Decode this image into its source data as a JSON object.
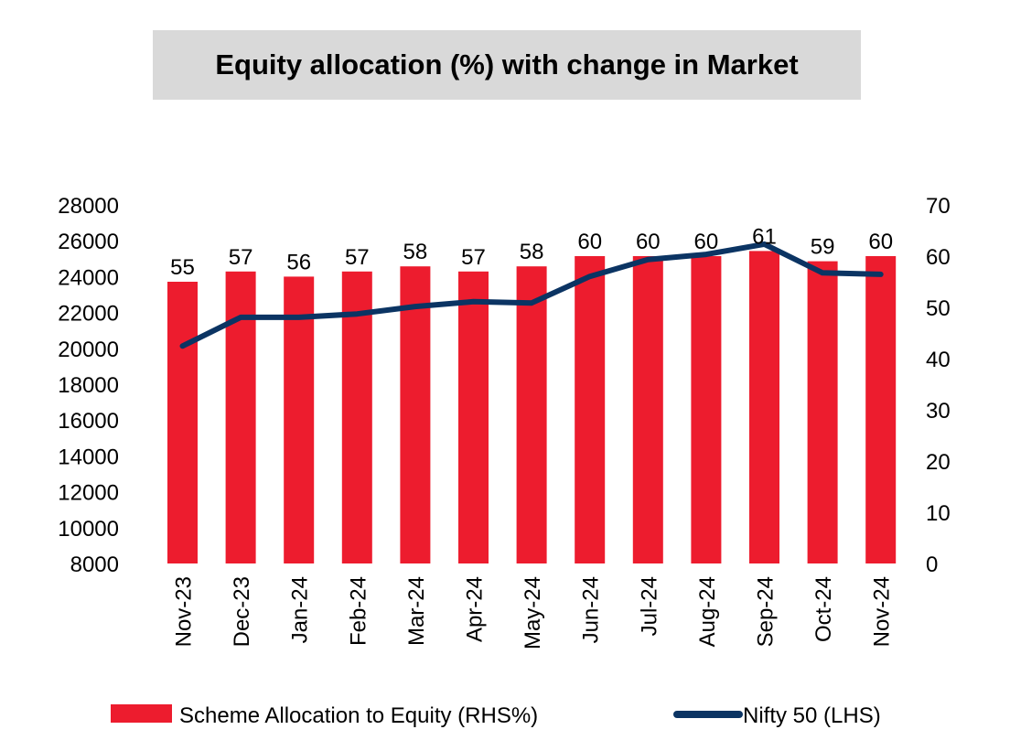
{
  "chart_data": {
    "type": "bar+line",
    "title": "Equity allocation (%) with change in Market",
    "categories": [
      "Nov-23",
      "Dec-23",
      "Jan-24",
      "Feb-24",
      "Mar-24",
      "Apr-24",
      "May-24",
      "Jun-24",
      "Jul-24",
      "Aug-24",
      "Sep-24",
      "Oct-24",
      "Nov-24"
    ],
    "series": [
      {
        "name": "Scheme Allocation to Equity (RHS%)",
        "type": "bar",
        "axis": "right",
        "color": "#ed1c2e",
        "values": [
          55,
          57,
          56,
          57,
          58,
          57,
          58,
          60,
          60,
          60,
          61,
          59,
          60
        ],
        "labels": [
          "55",
          "57",
          "56",
          "57",
          "58",
          "57",
          "58",
          "60",
          "60",
          "60",
          "61",
          "59",
          "60"
        ]
      },
      {
        "name": "Nifty 50 (LHS)",
        "type": "line",
        "axis": "left",
        "color": "#0b3463",
        "values": [
          20130,
          21730,
          21730,
          21920,
          22330,
          22600,
          22530,
          24010,
          24950,
          25240,
          25810,
          24210,
          24130
        ]
      }
    ],
    "y_left": {
      "min": 8000,
      "max": 28000,
      "step": 2000,
      "ticks": [
        "8000",
        "10000",
        "12000",
        "14000",
        "16000",
        "18000",
        "20000",
        "22000",
        "24000",
        "26000",
        "28000"
      ]
    },
    "y_right": {
      "min": 0,
      "max": 70,
      "step": 10,
      "ticks": [
        "0",
        "10",
        "20",
        "30",
        "40",
        "50",
        "60",
        "70"
      ]
    },
    "grid": false,
    "legend_position": "bottom"
  }
}
